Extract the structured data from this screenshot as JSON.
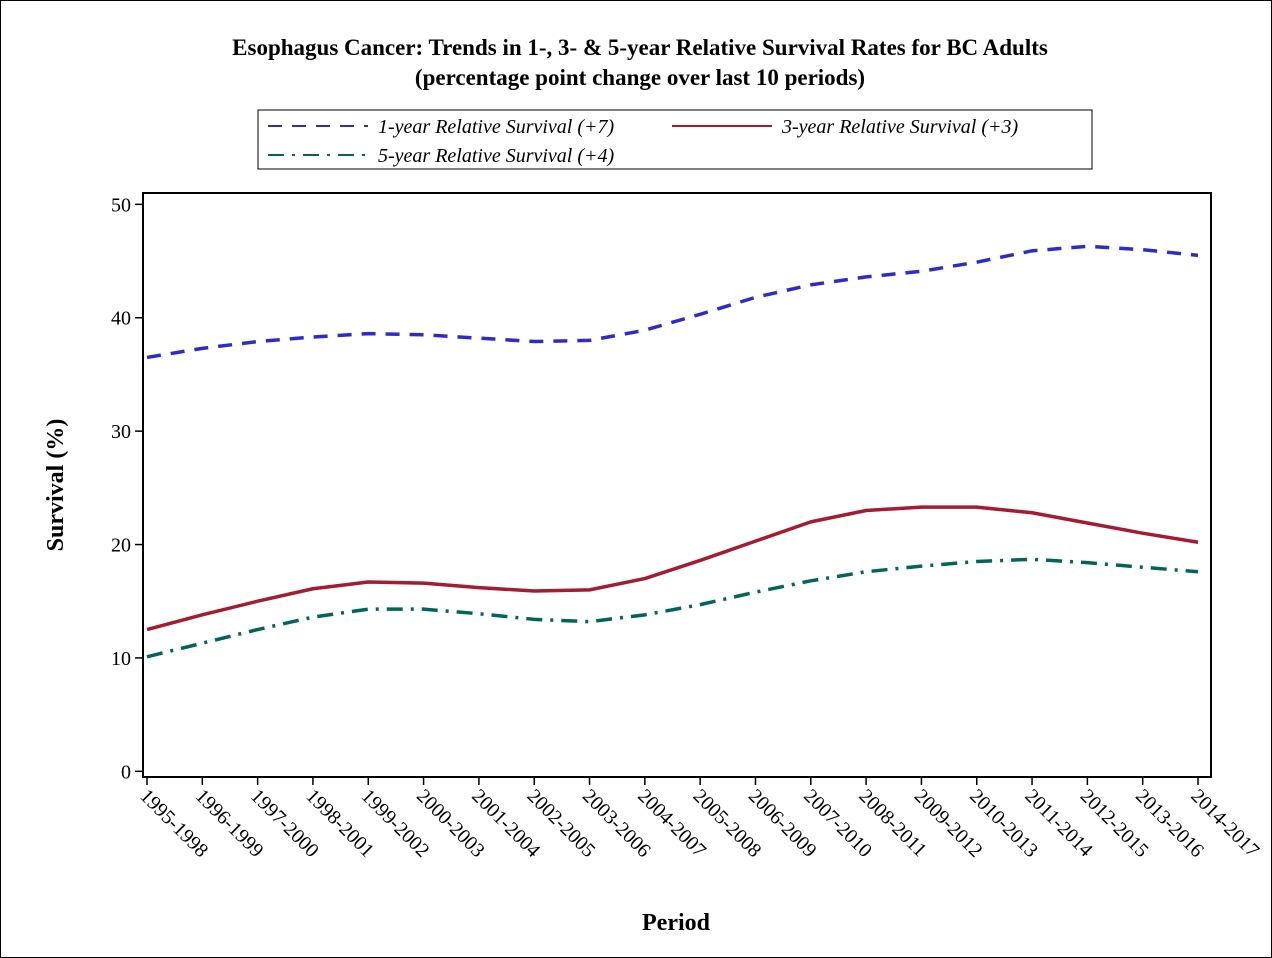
{
  "chart_data": {
    "type": "line",
    "title": "Esophagus Cancer: Trends in 1-, 3- & 5-year Relative Survival Rates for BC Adults",
    "subtitle": "(percentage point change over last 10 periods)",
    "x_label": "Period",
    "y_label": "Survival (%)",
    "categories": [
      "1995-1998",
      "1996-1999",
      "1997-2000",
      "1998-2001",
      "1999-2002",
      "2000-2003",
      "2001-2004",
      "2002-2005",
      "2003-2006",
      "2004-2007",
      "2005-2008",
      "2006-2009",
      "2007-2010",
      "2008-2011",
      "2009-2012",
      "2010-2013",
      "2011-2014",
      "2012-2015",
      "2013-2016",
      "2014-2017"
    ],
    "series": [
      {
        "name": "1-year Relative Survival (+7)",
        "color": "#2b2bd0",
        "dash": "dashed",
        "values": [
          36.5,
          37.3,
          37.9,
          38.3,
          38.6,
          38.5,
          38.2,
          37.9,
          38.0,
          38.9,
          40.3,
          41.8,
          42.9,
          43.6,
          44.1,
          44.9,
          45.9,
          46.3,
          46.0,
          45.5
        ]
      },
      {
        "name": "3-year Relative Survival (+3)",
        "color": "#a51c30",
        "dash": "solid",
        "values": [
          12.5,
          13.8,
          15.0,
          16.1,
          16.7,
          16.6,
          16.2,
          15.9,
          16.0,
          17.0,
          18.6,
          20.3,
          22.0,
          23.0,
          23.3,
          23.3,
          22.8,
          21.9,
          21.0,
          20.2
        ]
      },
      {
        "name": "5-year Relative Survival (+4)",
        "color": "#00665a",
        "dash": "dashdot",
        "values": [
          10.1,
          11.3,
          12.5,
          13.6,
          14.3,
          14.3,
          13.9,
          13.4,
          13.2,
          13.8,
          14.7,
          15.8,
          16.8,
          17.6,
          18.1,
          18.5,
          18.7,
          18.4,
          18.0,
          17.6
        ]
      }
    ],
    "ylim": [
      -0.5,
      51
    ],
    "yticks": [
      0,
      10,
      20,
      30,
      40,
      50
    ]
  }
}
